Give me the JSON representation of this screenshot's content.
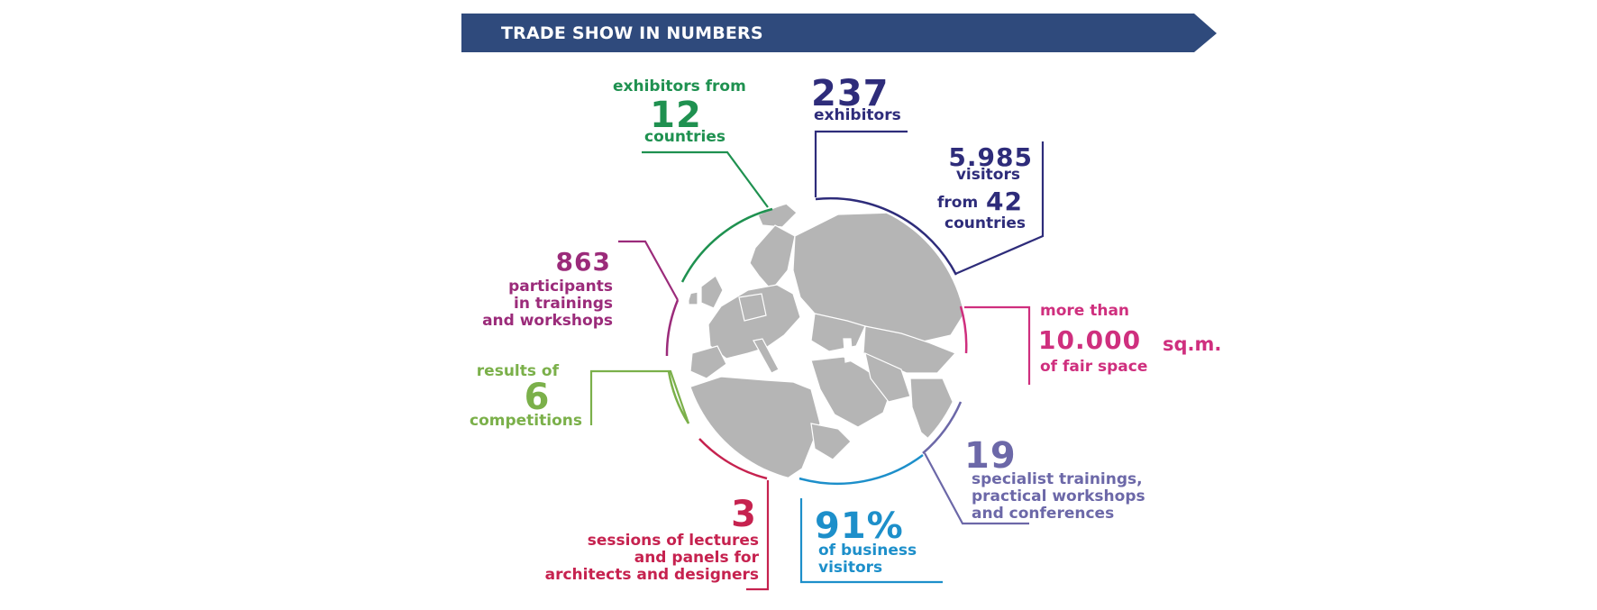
{
  "banner": {
    "title": "TRADE SHOW IN NUMBERS",
    "color": "#2f4a7c"
  },
  "colors": {
    "navy": "#2e2c7a",
    "green": "#1f9150",
    "lightgreen": "#7bb04a",
    "purple": "#9b2b7a",
    "magenta": "#cf2f7e",
    "crimson": "#c6224f",
    "blue": "#1d8fca",
    "lavender": "#6c68a8",
    "map": "#b5b5b5"
  },
  "map": {
    "icon": "globe-map-icon",
    "region": "Europe, Middle East and Asia"
  },
  "stats": {
    "exhibitors_countries": {
      "prefix": "exhibitors from",
      "value": "12",
      "suffix": "countries"
    },
    "exhibitors": {
      "value": "237",
      "label": "exhibitors"
    },
    "visitors": {
      "value": "5.985",
      "label": "visitors",
      "from_prefix": "from",
      "from_value": "42",
      "suffix": "countries"
    },
    "participants": {
      "value": "863",
      "line1": "participants",
      "line2": "in trainings",
      "line3": "and workshops"
    },
    "fair_space": {
      "prefix": "more than",
      "value": "10.000",
      "unit": "sq.m.",
      "suffix": "of fair space"
    },
    "competitions": {
      "prefix": "results of",
      "value": "6",
      "suffix": "competitions"
    },
    "specialist": {
      "value": "19",
      "line1": "specialist trainings,",
      "line2": "practical workshops",
      "line3": "and conferences"
    },
    "business_visitors": {
      "value": "91%",
      "line1": "of business",
      "line2": "visitors"
    },
    "sessions": {
      "value": "3",
      "line1": "sessions of lectures",
      "line2": "and panels for",
      "line3": "architects and designers"
    }
  }
}
